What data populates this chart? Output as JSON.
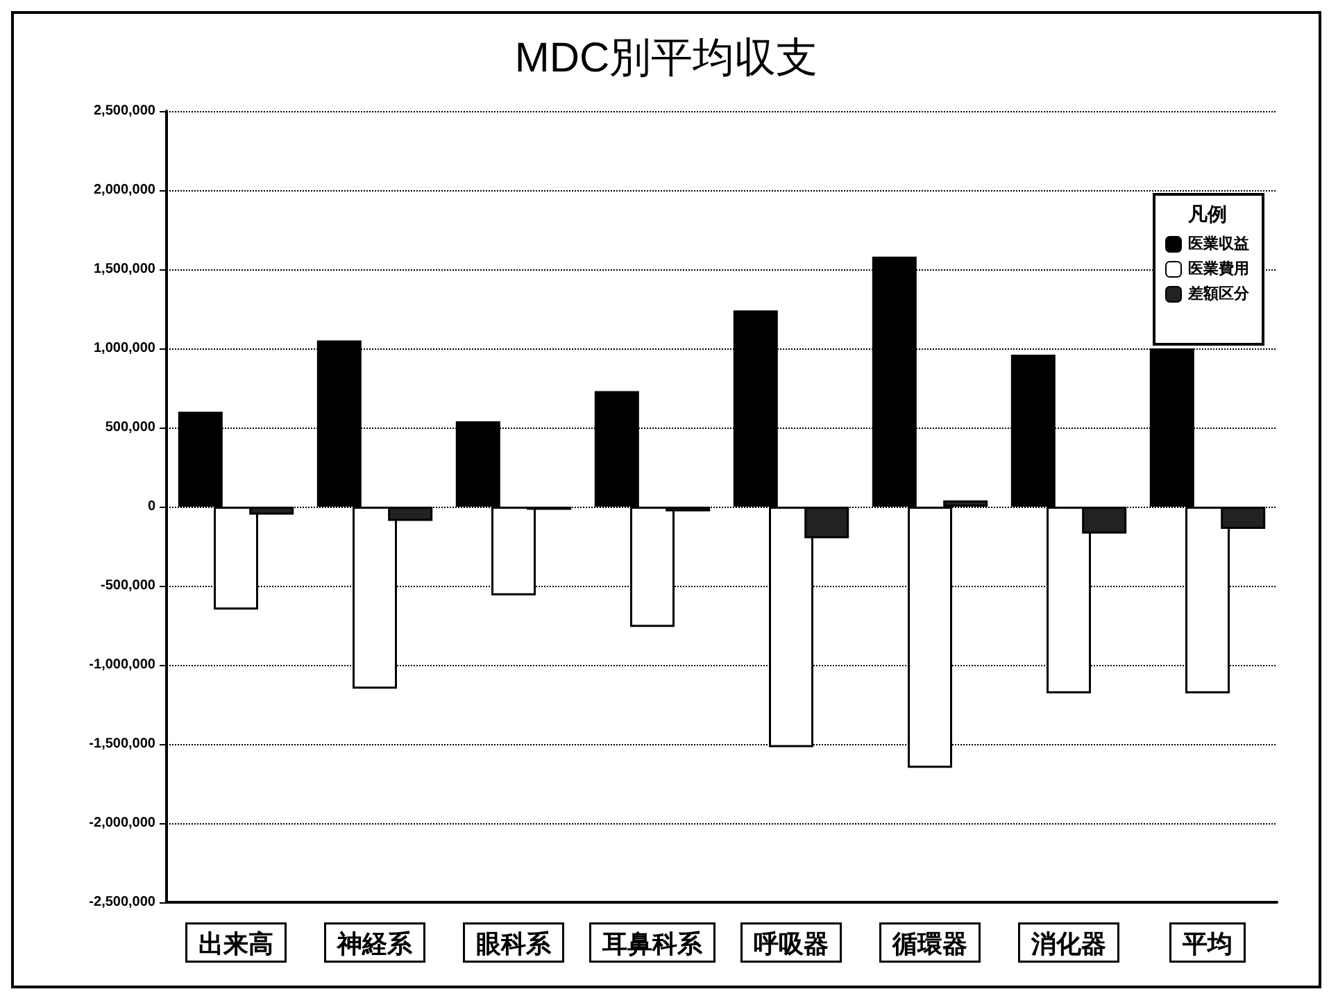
{
  "chart_data": {
    "type": "bar",
    "title": "MDC別平均収支",
    "legend_title": "凡例",
    "categories": [
      "出来高",
      "神経系",
      "眼科系",
      "耳鼻科系",
      "呼吸器",
      "循環器",
      "消化器",
      "平均"
    ],
    "series": [
      {
        "name": "医業収益",
        "color": "#000000",
        "values": [
          600000,
          1050000,
          540000,
          730000,
          1240000,
          1580000,
          960000,
          1000000
        ]
      },
      {
        "name": "医業費用",
        "color": "#ffffff",
        "values": [
          -650000,
          -1150000,
          -560000,
          -760000,
          -1520000,
          -1650000,
          -1180000,
          -1180000
        ]
      },
      {
        "name": "差額区分",
        "color": "#222222",
        "values": [
          -50000,
          -90000,
          -20000,
          -30000,
          -200000,
          40000,
          -170000,
          -140000
        ]
      }
    ],
    "ylim": [
      -2500000,
      2500000
    ],
    "yticks": [
      {
        "value": -2500000,
        "label": "-2,500,000"
      },
      {
        "value": -2000000,
        "label": "-2,000,000"
      },
      {
        "value": -1500000,
        "label": "-1,500,000"
      },
      {
        "value": -1000000,
        "label": "-1,000,000"
      },
      {
        "value": -500000,
        "label": "-500,000"
      },
      0,
      {
        "value": 500000,
        "label": "500,000"
      },
      {
        "value": 1000000,
        "label": "1,000,000"
      },
      {
        "value": 1500000,
        "label": "1,500,000"
      },
      {
        "value": 2000000,
        "label": "2,000,000"
      },
      {
        "value": 2500000,
        "label": "2,500,000"
      }
    ],
    "grid": "y",
    "legend": "top right"
  }
}
